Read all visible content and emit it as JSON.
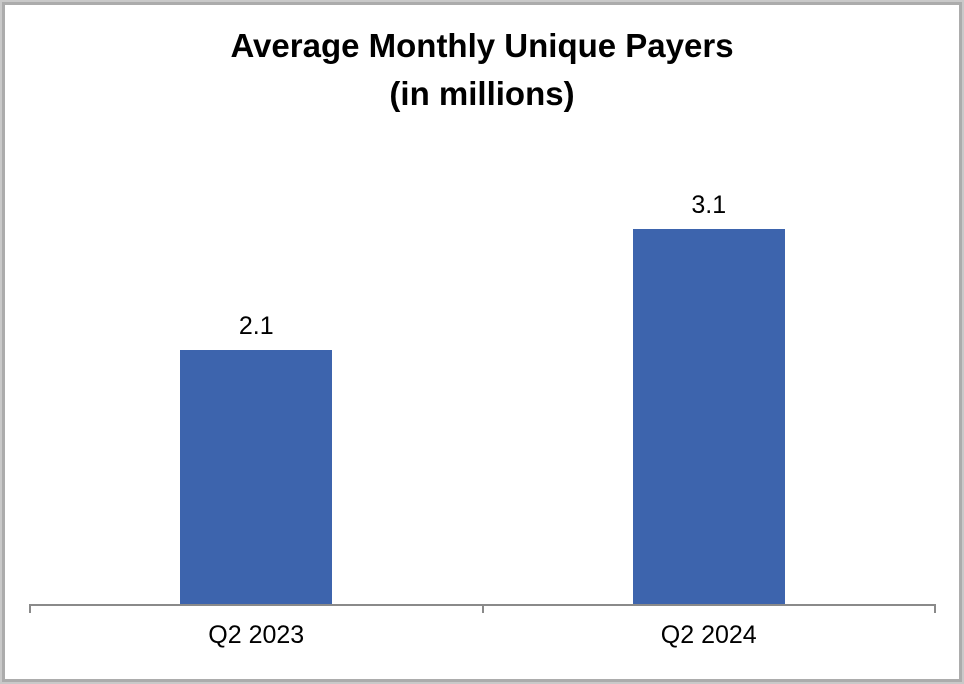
{
  "title": {
    "line1": "Average Monthly Unique Payers",
    "line2": "(in millions)"
  },
  "chart_data": {
    "type": "bar",
    "title": "Average Monthly Unique Payers (in millions)",
    "categories": [
      "Q2 2023",
      "Q2 2024"
    ],
    "values": [
      2.1,
      3.1
    ],
    "data_labels": [
      "2.1",
      "3.1"
    ],
    "xlabel": "",
    "ylabel": "",
    "ylim": [
      0,
      3.8
    ],
    "grid": false,
    "legend": false,
    "data_labels_shown": true
  },
  "colors": {
    "bar": "#3D64AD",
    "axis": "#8A8A8A",
    "text": "#000000",
    "frame_outer": "#C9C9C9",
    "frame_inner": "#ACACAC",
    "background": "#FFFFFF"
  }
}
